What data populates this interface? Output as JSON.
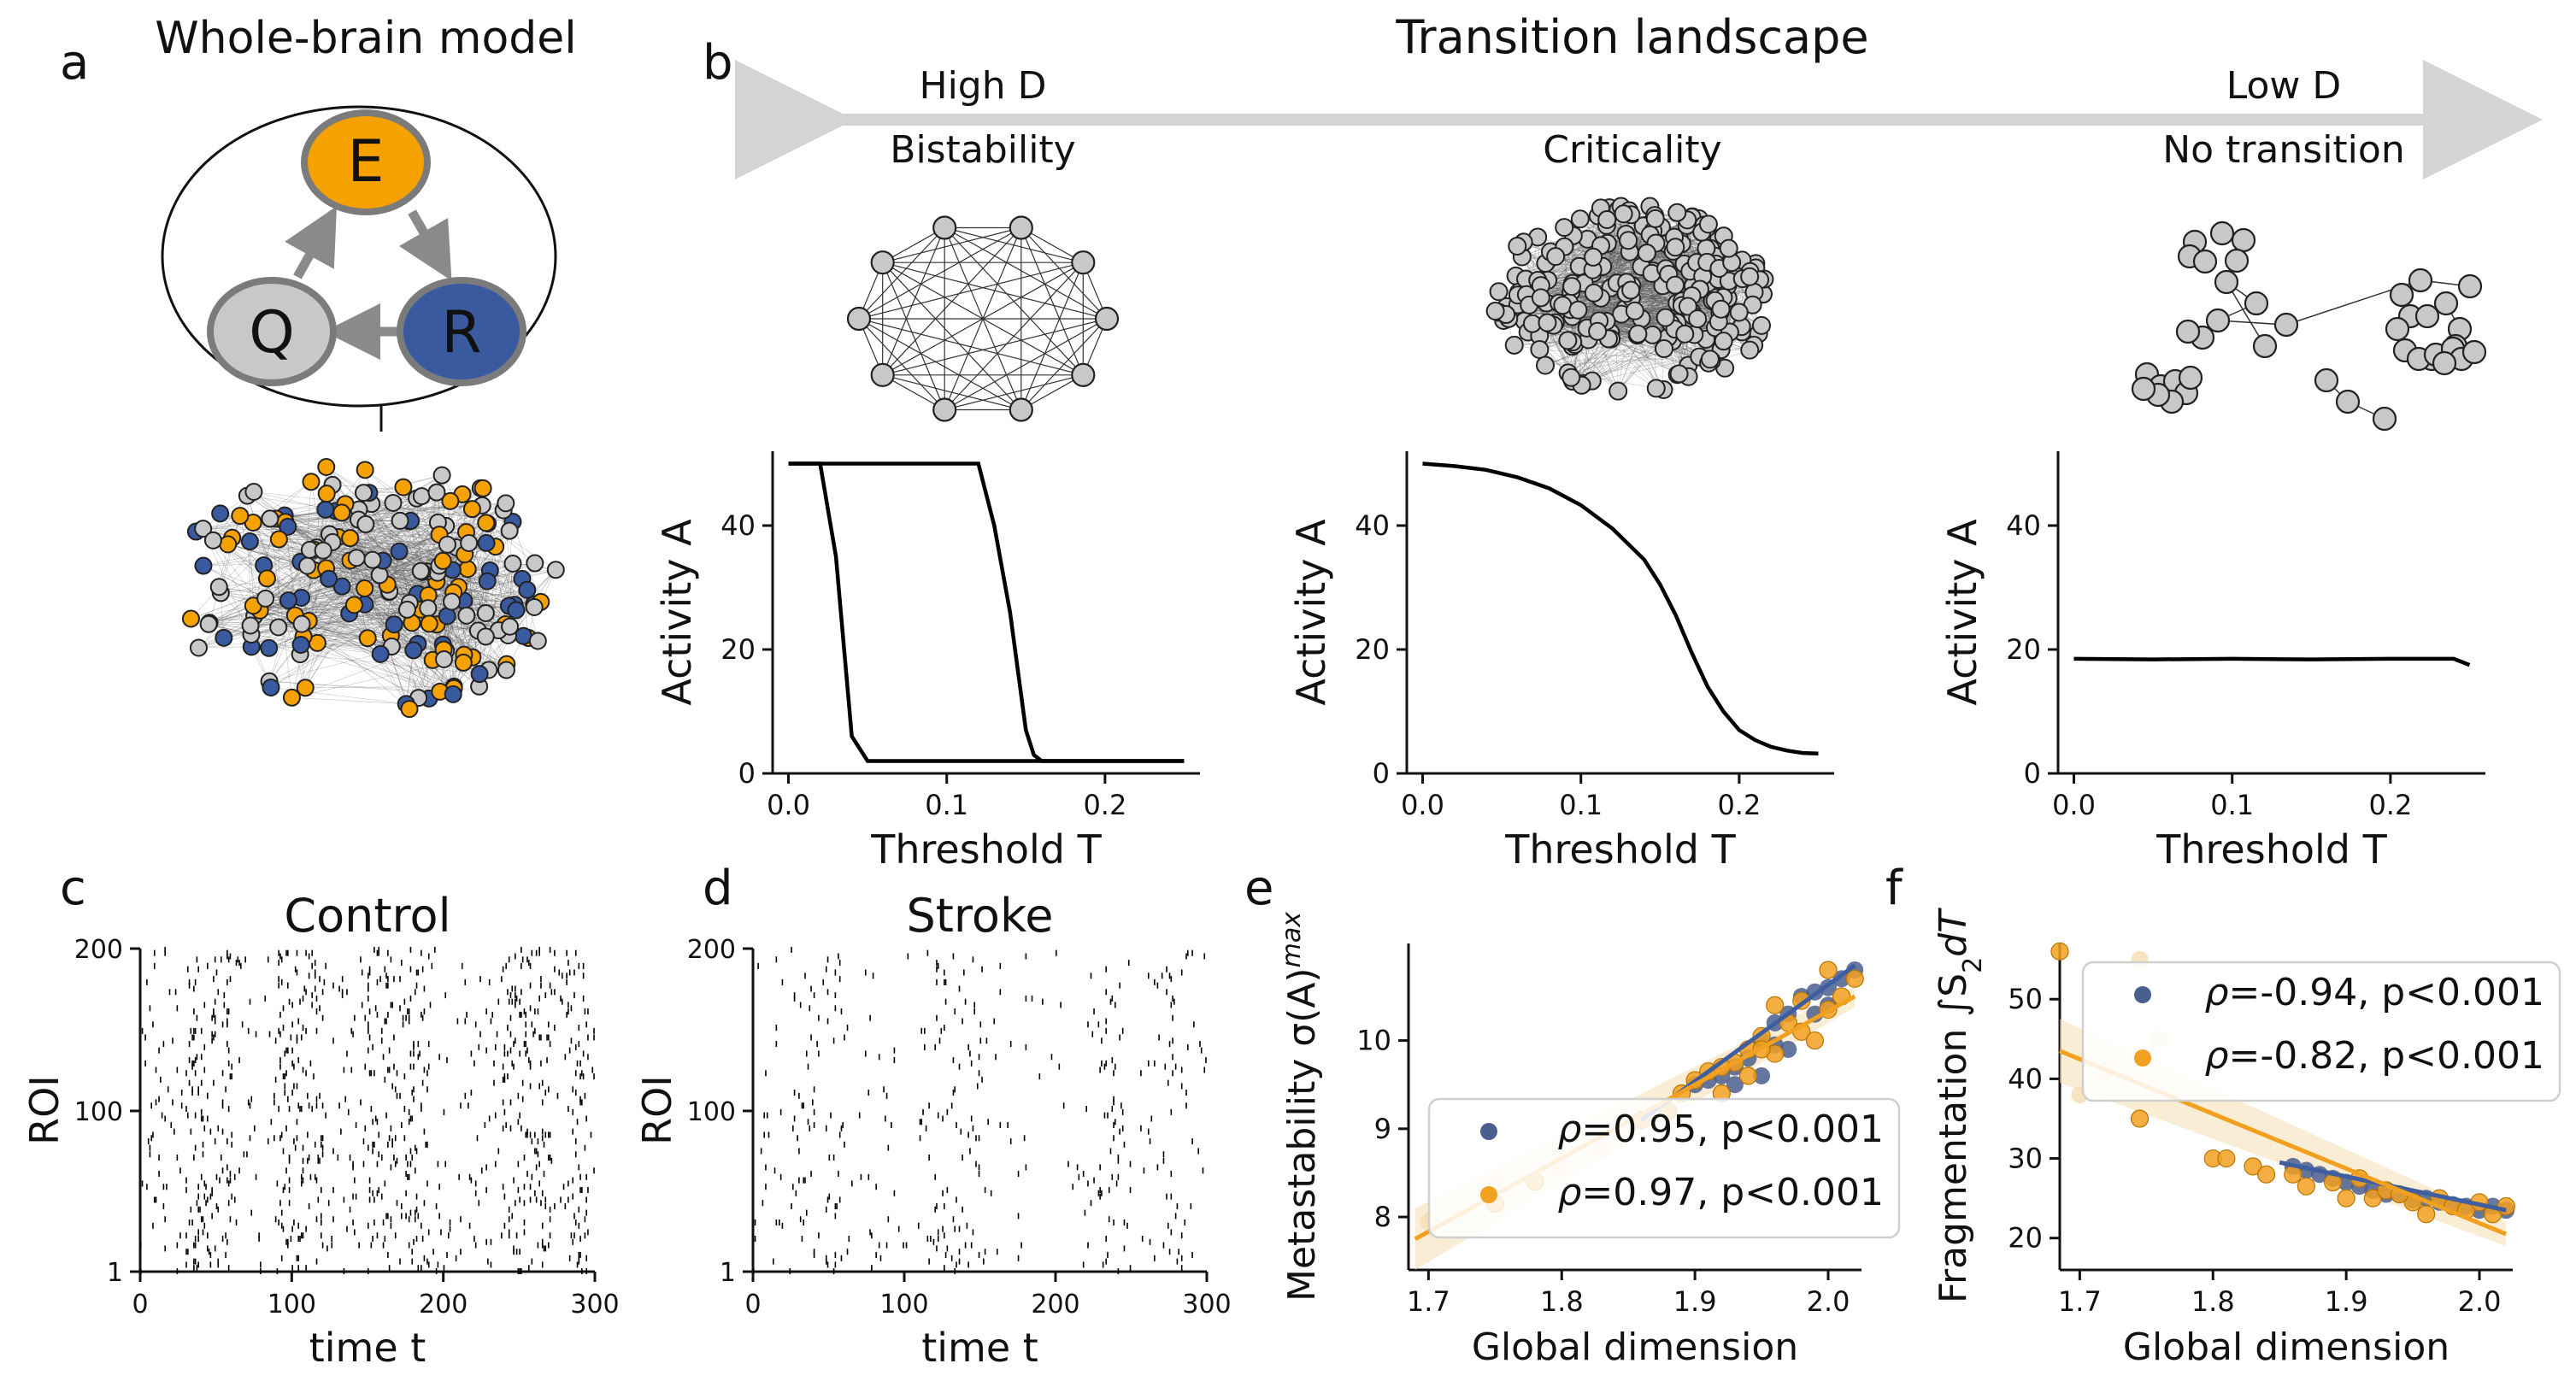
{
  "panel_labels": {
    "a": "a",
    "b": "b",
    "c": "c",
    "d": "d",
    "e": "e",
    "f": "f"
  },
  "panel_a": {
    "title": "Whole-brain model",
    "nodes": {
      "E": "E",
      "Q": "Q",
      "R": "R"
    },
    "colors": {
      "E": "#f5a100",
      "Q": "#c8c8c8",
      "R": "#3a5aa0",
      "edge": "#8a8a8a"
    }
  },
  "panel_b": {
    "title": "Transition landscape",
    "left_label": "High D",
    "right_label": "Low D",
    "regimes": [
      "Bistability",
      "Criticality",
      "No transition"
    ]
  },
  "chart_data": [
    {
      "id": "b1",
      "type": "line",
      "xlabel": "Threshold T",
      "ylabel": "Activity A",
      "xlim": [
        -0.01,
        0.26
      ],
      "ylim": [
        0,
        52
      ],
      "xticks": [
        0.0,
        0.1,
        0.2
      ],
      "xtick_labels": [
        "0.0",
        "0.1",
        "0.2"
      ],
      "yticks": [
        0,
        20,
        40
      ],
      "ytick_labels": [
        "0",
        "20",
        "40"
      ],
      "series": [
        {
          "x": [
            0.0,
            0.02,
            0.03,
            0.04,
            0.05,
            0.1,
            0.15,
            0.2,
            0.25
          ],
          "y": [
            50,
            50,
            35,
            6,
            2,
            2,
            2,
            2,
            2
          ]
        },
        {
          "x": [
            0.0,
            0.12,
            0.13,
            0.14,
            0.15,
            0.155,
            0.16,
            0.2,
            0.25
          ],
          "y": [
            50,
            50,
            40,
            26,
            7,
            3,
            2,
            2,
            2
          ]
        }
      ]
    },
    {
      "id": "b2",
      "type": "line",
      "xlabel": "Threshold T",
      "ylabel": "Activity A",
      "xlim": [
        -0.01,
        0.26
      ],
      "ylim": [
        0,
        52
      ],
      "xticks": [
        0.0,
        0.1,
        0.2
      ],
      "xtick_labels": [
        "0.0",
        "0.1",
        "0.2"
      ],
      "yticks": [
        0,
        20,
        40
      ],
      "ytick_labels": [
        "0",
        "20",
        "40"
      ],
      "series": [
        {
          "x": [
            0.0,
            0.02,
            0.04,
            0.06,
            0.08,
            0.1,
            0.12,
            0.14,
            0.15,
            0.16,
            0.17,
            0.18,
            0.19,
            0.2,
            0.21,
            0.22,
            0.23,
            0.24,
            0.25
          ],
          "y": [
            50,
            49.6,
            49,
            47.8,
            46,
            43.3,
            39.5,
            34.5,
            30.5,
            25.5,
            19.5,
            14,
            10,
            7,
            5.4,
            4.3,
            3.7,
            3.3,
            3.2
          ]
        }
      ]
    },
    {
      "id": "b3",
      "type": "line",
      "xlabel": "Threshold T",
      "ylabel": "Activity A",
      "xlim": [
        -0.01,
        0.26
      ],
      "ylim": [
        0,
        52
      ],
      "xticks": [
        0.0,
        0.1,
        0.2
      ],
      "xtick_labels": [
        "0.0",
        "0.1",
        "0.2"
      ],
      "yticks": [
        0,
        20,
        40
      ],
      "ytick_labels": [
        "0",
        "20",
        "40"
      ],
      "series": [
        {
          "x": [
            0.0,
            0.05,
            0.1,
            0.15,
            0.2,
            0.23,
            0.24,
            0.25
          ],
          "y": [
            18.5,
            18.4,
            18.5,
            18.4,
            18.5,
            18.5,
            18.5,
            17.5
          ]
        }
      ]
    },
    {
      "id": "c",
      "type": "scatter",
      "title": "Control",
      "xlabel": "time t",
      "ylabel": "ROI",
      "xlim": [
        0,
        300
      ],
      "ylim": [
        1,
        200
      ],
      "xticks": [
        0,
        100,
        200,
        300
      ],
      "xtick_labels": [
        "0",
        "100",
        "200",
        "300"
      ],
      "yticks": [
        1,
        100,
        200
      ],
      "ytick_labels": [
        "1",
        "100",
        "200"
      ]
    },
    {
      "id": "d",
      "type": "scatter",
      "title": "Stroke",
      "xlabel": "time t",
      "ylabel": "ROI",
      "xlim": [
        0,
        300
      ],
      "ylim": [
        1,
        200
      ],
      "xticks": [
        0,
        100,
        200,
        300
      ],
      "xtick_labels": [
        "0",
        "100",
        "200",
        "300"
      ],
      "yticks": [
        1,
        100,
        200
      ],
      "ytick_labels": [
        "1",
        "100",
        "200"
      ]
    },
    {
      "id": "e",
      "type": "scatter",
      "xlabel": "Global dimension",
      "ylabel": "Metastability σ(A)",
      "ylabel_sup": "max",
      "xlim": [
        1.685,
        2.025
      ],
      "ylim": [
        7.4,
        11.1
      ],
      "xticks": [
        1.7,
        1.8,
        1.9,
        2.0
      ],
      "xtick_labels": [
        "1.7",
        "1.8",
        "1.9",
        "2.0"
      ],
      "yticks": [
        8,
        9,
        10
      ],
      "ytick_labels": [
        "8",
        "9",
        "10"
      ],
      "legend": [
        {
          "symbol": "ρ",
          "text": "=0.95, p<0.001",
          "color": "#4a5f8f"
        },
        {
          "symbol": "ρ",
          "text": "=0.97, p<0.001",
          "color": "#f2a020"
        }
      ],
      "fits": [
        {
          "color": "#3f5ea0",
          "x": [
            1.86,
            2.02
          ],
          "y": [
            9.1,
            10.85
          ]
        },
        {
          "color": "#f2a020",
          "x": [
            1.69,
            2.02
          ],
          "y": [
            7.75,
            10.5
          ]
        }
      ],
      "series": [
        {
          "color": "#4a5f8f",
          "points": [
            [
              1.92,
              9.6
            ],
            [
              1.93,
              9.7
            ],
            [
              1.94,
              9.8
            ],
            [
              1.95,
              10.0
            ],
            [
              1.96,
              10.2
            ],
            [
              1.97,
              10.3
            ],
            [
              1.98,
              10.5
            ],
            [
              1.99,
              10.55
            ],
            [
              2.0,
              10.6
            ],
            [
              2.01,
              10.7
            ],
            [
              2.02,
              10.8
            ],
            [
              1.9,
              9.5
            ],
            [
              1.91,
              9.55
            ],
            [
              1.88,
              9.2
            ],
            [
              1.95,
              9.6
            ],
            [
              1.97,
              9.9
            ],
            [
              1.99,
              10.3
            ],
            [
              2.0,
              10.4
            ],
            [
              1.93,
              9.5
            ],
            [
              1.96,
              9.95
            ]
          ]
        },
        {
          "color": "#f2a020",
          "points": [
            [
              1.75,
              8.15
            ],
            [
              1.78,
              8.4
            ],
            [
              1.86,
              9.1
            ],
            [
              1.88,
              9.2
            ],
            [
              1.89,
              9.4
            ],
            [
              1.9,
              9.55
            ],
            [
              1.91,
              9.65
            ],
            [
              1.92,
              9.4
            ],
            [
              1.93,
              9.75
            ],
            [
              1.94,
              9.9
            ],
            [
              1.95,
              10.05
            ],
            [
              1.96,
              9.85
            ],
            [
              1.97,
              10.2
            ],
            [
              1.98,
              10.1
            ],
            [
              1.99,
              10.0
            ],
            [
              2.0,
              10.35
            ],
            [
              2.01,
              10.5
            ],
            [
              2.02,
              10.7
            ],
            [
              1.96,
              10.4
            ],
            [
              1.94,
              9.6
            ],
            [
              1.92,
              9.7
            ],
            [
              1.98,
              10.45
            ],
            [
              2.0,
              10.8
            ],
            [
              1.95,
              9.9
            ]
          ]
        },
        {
          "color": "#f6deb5",
          "points": [
            [
              1.7,
              7.95
            ],
            [
              1.72,
              8.0
            ],
            [
              1.75,
              8.4
            ],
            [
              1.8,
              8.55
            ],
            [
              1.83,
              8.75
            ]
          ]
        }
      ]
    },
    {
      "id": "f",
      "type": "scatter",
      "xlabel": "Global dimension",
      "ylabel": "Fragmentation ∫S",
      "ylabel_sub": "2",
      "ylabel_tail": "dT",
      "xlim": [
        1.685,
        2.025
      ],
      "ylim": [
        16,
        57
      ],
      "xticks": [
        1.7,
        1.8,
        1.9,
        2.0
      ],
      "xtick_labels": [
        "1.7",
        "1.8",
        "1.9",
        "2.0"
      ],
      "yticks": [
        20,
        30,
        40,
        50
      ],
      "ytick_labels": [
        "20",
        "30",
        "40",
        "50"
      ],
      "legend": [
        {
          "symbol": "ρ",
          "text": "=-0.94, p<0.001",
          "color": "#4a5f8f"
        },
        {
          "symbol": "ρ",
          "text": "=-0.82, p<0.001",
          "color": "#f2a020"
        }
      ],
      "fits": [
        {
          "color": "#3f5ea0",
          "x": [
            1.85,
            2.02
          ],
          "y": [
            29.5,
            23.5
          ]
        },
        {
          "color": "#f2a020",
          "x": [
            1.685,
            2.02
          ],
          "y": [
            43.5,
            20.5
          ]
        }
      ],
      "series": [
        {
          "color": "#4a5f8f",
          "points": [
            [
              1.86,
              29
            ],
            [
              1.88,
              28
            ],
            [
              1.9,
              27
            ],
            [
              1.92,
              26
            ],
            [
              1.94,
              25.5
            ],
            [
              1.96,
              25
            ],
            [
              1.97,
              24.5
            ],
            [
              1.99,
              24
            ],
            [
              2.0,
              23.5
            ],
            [
              2.02,
              23.5
            ],
            [
              1.91,
              26.5
            ],
            [
              1.93,
              25.5
            ],
            [
              1.95,
              24.8
            ],
            [
              1.98,
              24.2
            ],
            [
              2.01,
              24
            ],
            [
              1.89,
              27.5
            ],
            [
              1.87,
              28.5
            ]
          ]
        },
        {
          "color": "#f2a020",
          "points": [
            [
              1.685,
              56
            ],
            [
              1.745,
              35
            ],
            [
              1.8,
              30
            ],
            [
              1.81,
              30
            ],
            [
              1.83,
              29
            ],
            [
              1.84,
              28
            ],
            [
              1.86,
              28
            ],
            [
              1.87,
              26.5
            ],
            [
              1.89,
              27
            ],
            [
              1.9,
              25
            ],
            [
              1.92,
              25
            ],
            [
              1.93,
              26
            ],
            [
              1.95,
              24.5
            ],
            [
              1.96,
              23
            ],
            [
              1.97,
              25
            ],
            [
              1.98,
              24
            ],
            [
              1.99,
              23.5
            ],
            [
              2.0,
              24.5
            ],
            [
              2.01,
              23
            ],
            [
              2.02,
              24
            ],
            [
              1.91,
              27.5
            ],
            [
              1.94,
              25.5
            ]
          ]
        },
        {
          "color": "#f6deb5",
          "points": [
            [
              1.7,
              38
            ],
            [
              1.72,
              41
            ],
            [
              1.745,
              55
            ],
            [
              1.76,
              45
            ]
          ]
        }
      ]
    }
  ]
}
